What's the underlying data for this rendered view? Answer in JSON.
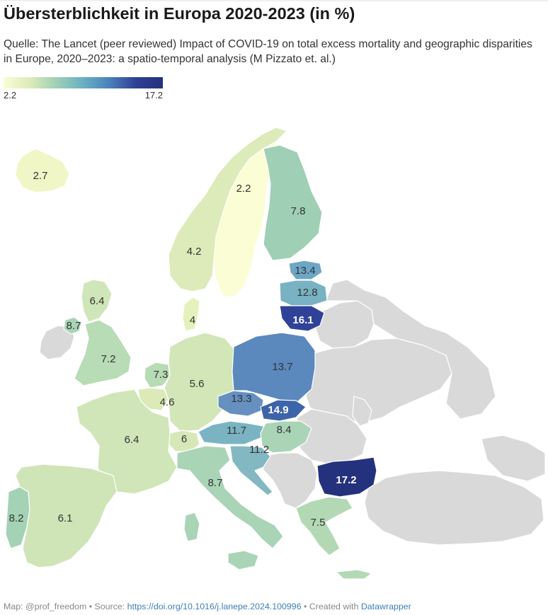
{
  "header": {
    "title": "Übersterblichkeit in Europa 2020-2023 (in %)",
    "subtitle": "Quelle: The Lancet (peer reviewed) Impact of COVID-19 on total excess mortality and geographic disparities in Europe, 2020–2023: a spatio-temporal analysis (M Pizzato et. al.)"
  },
  "legend": {
    "min": "2.2",
    "max": "17.2",
    "color_low": "#fbfdd4",
    "color_high": "#24327d"
  },
  "map_data": {
    "type": "choropleth",
    "unit": "%",
    "no_data_color": "#d9d9d9",
    "values": {
      "iceland": "2.7",
      "sweden": "2.2",
      "finland": "7.8",
      "norway": "4.2",
      "estonia": "13.4",
      "latvia": "12.8",
      "lithuania": "16.1",
      "denmark": "4",
      "scotland": "6.4",
      "northern_ireland": "8.7",
      "england": "7.2",
      "netherlands": "7.3",
      "belgium": "4.6",
      "germany": "5.6",
      "poland": "13.7",
      "czechia": "13.3",
      "slovakia": "14.9",
      "austria": "11.7",
      "hungary": "8.4",
      "switzerland": "6",
      "france": "6.4",
      "slovenia_croatia": "11.2",
      "italy": "8.7",
      "bulgaria": "17.2",
      "greece": "7.5",
      "portugal": "8.2",
      "spain": "6.1"
    }
  },
  "footer": {
    "map_prefix": "Map: @prof_freedom • Source: ",
    "source_link": "https://doi.org/10.1016/j.lanepe.2024.100996",
    "created_prefix": " • Created with ",
    "created_link": "Datawrapper"
  }
}
